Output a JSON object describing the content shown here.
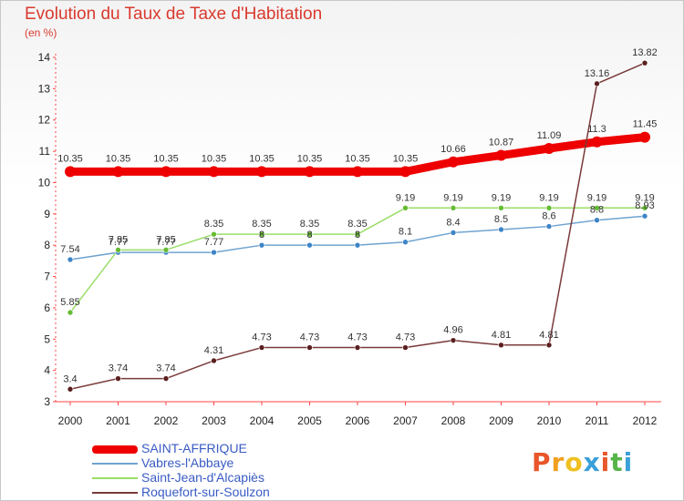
{
  "title": "Evolution du Taux de Taxe d'Habitation",
  "unit": "(en %)",
  "logo": "Proxiti",
  "chart_data": {
    "type": "line",
    "x": [
      "2000",
      "2001",
      "2002",
      "2003",
      "2004",
      "2005",
      "2006",
      "2007",
      "2008",
      "2009",
      "2010",
      "2011",
      "2012"
    ],
    "ylim": [
      3,
      14
    ],
    "yticks": [
      3,
      4,
      5,
      6,
      7,
      8,
      9,
      10,
      11,
      12,
      13,
      14
    ],
    "grid": false,
    "legend_position": "bottom-left",
    "series": [
      {
        "name": "SAINT-AFFRIQUE",
        "color": "#ee0000",
        "values": [
          10.35,
          10.35,
          10.35,
          10.35,
          10.35,
          10.35,
          10.35,
          10.35,
          10.66,
          10.87,
          11.09,
          11.3,
          11.45
        ],
        "labels": [
          "10.35",
          "10.35",
          "10.35",
          "10.35",
          "10.35",
          "10.35",
          "10.35",
          "10.35",
          "10.66",
          "10.87",
          "11.09",
          "11.3",
          "11.45"
        ]
      },
      {
        "name": "Vabres-l'Abbaye",
        "color": "#6fa3d0",
        "values": [
          7.54,
          7.77,
          7.77,
          7.77,
          8,
          8,
          8,
          8.1,
          8.4,
          8.5,
          8.6,
          8.8,
          8.93
        ],
        "labels": [
          "7.54",
          "7.77",
          "7.77",
          "7.77",
          "8",
          "8",
          "8",
          "8.1",
          "8.4",
          "8.5",
          "8.6",
          "8.8",
          "8.93"
        ]
      },
      {
        "name": "Saint-Jean-d'Alcapiès",
        "color": "#99dd66",
        "values": [
          5.85,
          7.85,
          7.85,
          8.35,
          8.35,
          8.35,
          8.35,
          9.19,
          9.19,
          9.19,
          9.19,
          9.19,
          9.19
        ],
        "labels": [
          "5.85",
          "7.85",
          "7.85",
          "8.35",
          "8.35",
          "8.35",
          "8.35",
          "9.19",
          "9.19",
          "9.19",
          "9.19",
          "9.19",
          "9.19"
        ]
      },
      {
        "name": "Roquefort-sur-Soulzon",
        "color": "#7a3a3a",
        "values": [
          3.4,
          3.74,
          3.74,
          4.31,
          4.73,
          4.73,
          4.73,
          4.73,
          4.96,
          4.81,
          4.81,
          13.16,
          13.82
        ],
        "labels": [
          "3.4",
          "3.74",
          "3.74",
          "4.31",
          "4.73",
          "4.73",
          "4.73",
          "4.73",
          "4.96",
          "4.81",
          "4.81",
          "13.16",
          "13.82"
        ]
      }
    ]
  }
}
